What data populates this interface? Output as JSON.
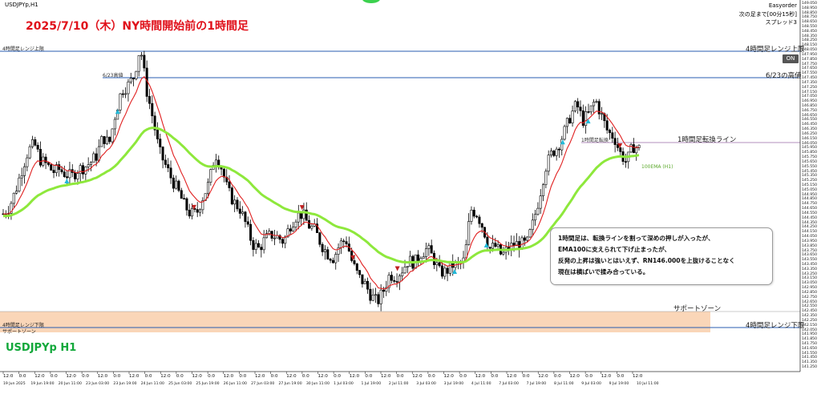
{
  "header": {
    "symbol": "USDJPYp,H1",
    "title": "2025/7/10（木）NY時間開始前の1時間足",
    "info_lines": [
      "Easyorder",
      "次の足まで[00分15秒]",
      "スプレッド3"
    ],
    "on_button": "ON"
  },
  "levels": {
    "range_top_left": "4時間足レンジ上限",
    "range_top_right": "4時間足レンジ上限",
    "high_623_left": "6/23高値",
    "high_623_right": "6/23の高値",
    "turn_line_right": "1時間足転換ライン",
    "support_zone_right": "サポートゾーン",
    "range_bottom_left": "4時間足レンジ下限",
    "support_zone_left": "サポートゾーン",
    "range_bottom_right": "4時間足レンジ下限",
    "ema_label": "100EMA (H1)",
    "turn_small": "1時間足転換"
  },
  "comment": {
    "lines": [
      "1時間足は、転換ラインを割って深めの押しが入ったが、",
      "EMA100に支えられて下げ止まったが、",
      "反発の上昇は強いとはいえず、RN146.000を上抜けることなく",
      "現在は横ばいで揉み合っている。"
    ]
  },
  "bottom_symbol": "USDJPYp H1",
  "colors": {
    "range_line": "#2a5db0",
    "support_zone": "#f9d2b0",
    "ema100": "#8ee83c",
    "ema_fast": "#e02020",
    "title": "#e0101a",
    "bottom_symbol": "#11a83a"
  },
  "chart_data": {
    "type": "candlestick",
    "symbol": "USDJPYp",
    "timeframe": "H1",
    "price_axis": {
      "ticks": [
        "149.050",
        "148.950",
        "148.850",
        "148.750",
        "148.650",
        "148.550",
        "148.450",
        "148.350",
        "148.250",
        "148.150",
        "148.050",
        "147.950",
        "147.850",
        "147.750",
        "147.650",
        "147.550",
        "147.450",
        "147.350",
        "147.250",
        "147.150",
        "147.050",
        "146.950",
        "146.850",
        "146.750",
        "146.650",
        "146.550",
        "146.450",
        "146.350",
        "146.250",
        "146.150",
        "146.050",
        "145.950",
        "145.850",
        "145.750",
        "145.650",
        "145.550",
        "145.450",
        "145.350",
        "145.250",
        "145.150",
        "145.050",
        "144.950",
        "144.850",
        "144.750",
        "144.650",
        "144.550",
        "144.450",
        "144.350",
        "144.250",
        "144.150",
        "144.050",
        "143.950",
        "143.850",
        "143.750",
        "143.650",
        "143.550",
        "143.450",
        "143.350",
        "143.250",
        "143.150",
        "143.050",
        "142.950",
        "142.850",
        "142.750",
        "142.650",
        "142.550",
        "142.450",
        "142.350",
        "142.250",
        "142.150",
        "142.050",
        "141.950",
        "141.850",
        "141.750",
        "141.650",
        "141.550",
        "141.450",
        "141.350",
        "141.250"
      ],
      "range": [
        141.2,
        149.1
      ]
    },
    "time_axis": {
      "dates": [
        "19 Jun 2025",
        "19 Jun 19:00",
        "20 Jun 11:00",
        "23 Jun 03:00",
        "23 Jun 19:00",
        "24 Jun 11:00",
        "25 Jun 03:00",
        "25 Jun 19:00",
        "26 Jun 11:00",
        "27 Jun 03:00",
        "27 Jun 19:00",
        "30 Jun 11:00",
        "1 Jul 03:00",
        "1 Jul 19:00",
        "2 Jul 11:00",
        "3 Jul 03:00",
        "3 Jul 19:00",
        "4 Jul 11:00",
        "7 Jul 03:00",
        "7 Jul 19:00",
        "8 Jul 11:00",
        "9 Jul 03:00",
        "9 Jul 19:00",
        "10 Jul 11:00"
      ],
      "hours": [
        "12:0",
        "0:0",
        "12:0",
        "0:0",
        "12:0",
        "0:0",
        "12:0",
        "0:0",
        "12:0",
        "0:0",
        "12:0",
        "0:0",
        "12:0",
        "0:0",
        "12:0",
        "0:0",
        "12:0",
        "0:0",
        "12:0",
        "0:0",
        "12:0",
        "0:0",
        "12:0",
        "0:0",
        "12:0",
        "0:0",
        "12:0",
        "0:0",
        "12:0",
        "0:0",
        "12:0",
        "0:0",
        "12:0",
        "0:0",
        "12:0",
        "0:0",
        "12:0",
        "0:0",
        "12:0",
        "0:0",
        "12:0"
      ]
    },
    "reference_levels": [
      {
        "name": "4時間足レンジ上限",
        "price": 148.62
      },
      {
        "name": "6/23の高値",
        "price": 148.01
      },
      {
        "name": "1時間足転換ライン",
        "price": 146.19
      },
      {
        "name": "4時間足レンジ下限",
        "price": 141.95
      }
    ],
    "support_zone": [
      141.9,
      142.45
    ],
    "close_series": [
      144.55,
      144.7,
      145.05,
      145.5,
      145.9,
      146.05,
      145.7,
      145.6,
      145.45,
      145.5,
      145.4,
      145.35,
      145.5,
      145.55,
      145.65,
      145.8,
      146.2,
      146.05,
      146.7,
      147.2,
      147.3,
      147.5,
      148.15,
      147.2,
      146.6,
      145.9,
      145.6,
      145.3,
      145.05,
      144.75,
      144.55,
      144.55,
      144.9,
      145.2,
      145.85,
      145.55,
      145.05,
      144.8,
      144.65,
      144.3,
      143.9,
      143.8,
      144.0,
      144.1,
      144.05,
      143.95,
      144.3,
      144.5,
      144.55,
      144.3,
      144.2,
      143.9,
      143.7,
      143.6,
      143.9,
      144.0,
      143.5,
      143.2,
      143.05,
      142.8,
      142.65,
      142.9,
      143.25,
      143.2,
      143.35,
      143.55,
      143.5,
      143.7,
      143.8,
      143.6,
      143.3,
      143.3,
      143.45,
      143.45,
      143.55,
      144.65,
      144.55,
      144.25,
      143.8,
      143.85,
      143.65,
      143.8,
      143.9,
      143.9,
      143.9,
      144.35,
      144.9,
      145.55,
      145.85,
      146.0,
      146.3,
      146.65,
      146.9,
      146.55,
      146.7,
      147.0,
      146.65,
      146.3,
      146.2,
      145.85,
      145.65,
      146.0,
      145.95
    ]
  }
}
